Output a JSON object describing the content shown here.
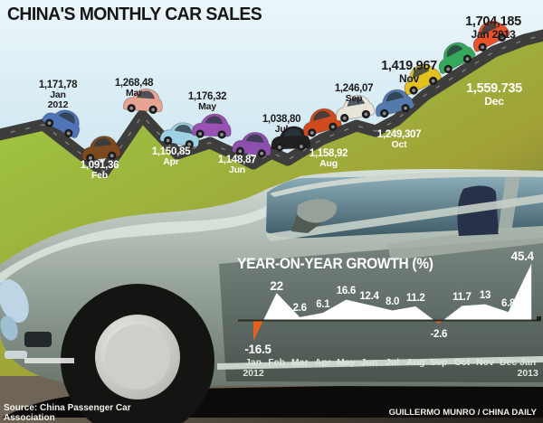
{
  "title": "CHINA'S MONTHLY CAR SALES",
  "chart_data": [
    {
      "type": "line",
      "name": "monthly-car-sales",
      "title": "CHINA'S MONTHLY CAR SALES",
      "categories": [
        "Jan\n2012",
        "Feb",
        "Mar",
        "Apr",
        "May",
        "Jun",
        "Jul",
        "Aug",
        "Sep",
        "Oct",
        "Nov",
        "Dec",
        "Jan 2013"
      ],
      "values_displayed": [
        "1,171,78",
        "1,091,36",
        "1,268,48",
        "1,150,85",
        "1,176,32",
        "1,148,87",
        "1,038,80",
        "1,158,92",
        "1,246,07",
        "1,249,307",
        "1,419,967",
        "1,559.735",
        "1,704,185"
      ],
      "car_colors": [
        "#4f74b8",
        "#7c4a1e",
        "#e7a493",
        "#9fd0e4",
        "#9a51b4",
        "#8d4fae",
        "#221f21",
        "#d04a1d",
        "#e9e4da",
        "#5379ad",
        "#e3c11f",
        "#36a85c",
        "#e8532c"
      ],
      "layout_hint": "cars on zigzag hill road, values labeled above or below road"
    },
    {
      "type": "area",
      "name": "year-on-year-growth",
      "title": "YEAR-ON-YEAR GROWTH (%)",
      "categories": [
        "Jan\n2012",
        "Feb",
        "Mar",
        "Apr",
        "May",
        "Jun",
        "Jul",
        "Aug",
        "Sep",
        "Oct",
        "Nov",
        "Dec",
        "Jan\n2013"
      ],
      "values": [
        -16.5,
        22,
        2.6,
        6.1,
        16.6,
        12.4,
        8.0,
        11.2,
        -2.6,
        11.7,
        13,
        6.8,
        45.4
      ],
      "values_displayed": [
        "-16.5",
        "22",
        "2.6",
        "6.1",
        "16.6",
        "12.4",
        "8.0",
        "11.2",
        "-2.6",
        "11.7",
        "13",
        "6.8",
        "45.4"
      ],
      "ylim": [
        -20,
        50
      ],
      "grid": false,
      "legend": false,
      "zero_line": true,
      "positive_fill": "#ffffff",
      "negative_fill": "#e7601f"
    }
  ],
  "colors": {
    "sky": "#cfe6f2",
    "hill_green": "#9fc844",
    "hill_olive": "#a1a238",
    "road": "#3d3d3b",
    "big_car_body": "#b9c5bd",
    "glass": "#4e6d7a",
    "shadow": "#0c0b09"
  },
  "footer": {
    "source": "Source: China Passenger Car\nAssociation",
    "credit": "GUILLERMO MUNRO / CHINA DAILY"
  }
}
